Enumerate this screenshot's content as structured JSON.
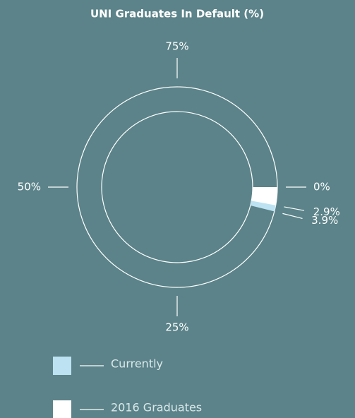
{
  "chart_data": {
    "type": "radial",
    "title": "UNI Graduates In Default (%)",
    "ylim": [
      0,
      100
    ],
    "yticks": [
      {
        "value": 0,
        "label": "0%"
      },
      {
        "value": 25,
        "label": "25%"
      },
      {
        "value": 50,
        "label": "50%"
      },
      {
        "value": 75,
        "label": "75%"
      }
    ],
    "series": [
      {
        "name": "Currently",
        "color": "#bde3f2",
        "values": [
          3.9
        ],
        "value_labels": [
          "3.9%"
        ]
      },
      {
        "name": "2016 Graduates",
        "color": "#ffffff",
        "values": [
          2.9
        ],
        "value_labels": [
          "2.9%"
        ]
      }
    ]
  }
}
